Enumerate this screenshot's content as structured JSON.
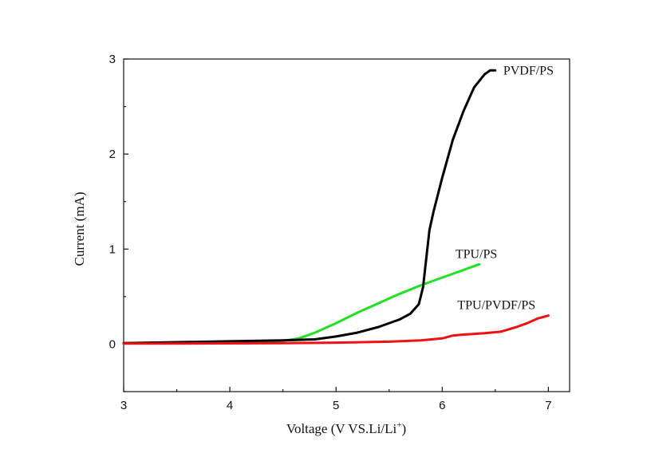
{
  "chart_data": {
    "type": "line",
    "title": "",
    "xlabel_main": "Voltage (V VS.Li/Li",
    "xlabel_sup": "+",
    "xlabel_end": ")",
    "ylabel": "Current (mA)",
    "xlim": [
      3,
      7.2
    ],
    "ylim": [
      -0.5,
      3
    ],
    "xticks": [
      3,
      4,
      5,
      6,
      7
    ],
    "yticks": [
      0,
      1,
      2,
      3
    ],
    "xtick_labels": [
      "3",
      "4",
      "5",
      "6",
      "7"
    ],
    "ytick_labels": [
      "0",
      "1",
      "2",
      "3"
    ],
    "grid": false,
    "legend": "none",
    "series": [
      {
        "name": "PVDF/PS",
        "color": "#000000",
        "x": [
          3.0,
          3.5,
          4.0,
          4.5,
          4.8,
          5.0,
          5.2,
          5.4,
          5.6,
          5.7,
          5.78,
          5.82,
          5.85,
          5.88,
          5.92,
          6.0,
          6.1,
          6.2,
          6.3,
          6.4,
          6.45,
          6.5
        ],
        "y": [
          0.01,
          0.02,
          0.03,
          0.04,
          0.05,
          0.08,
          0.12,
          0.18,
          0.26,
          0.32,
          0.42,
          0.6,
          0.9,
          1.2,
          1.4,
          1.75,
          2.15,
          2.45,
          2.7,
          2.84,
          2.88,
          2.88
        ]
      },
      {
        "name": "TPU/PS",
        "color": "#22e022",
        "x": [
          3.0,
          3.5,
          4.0,
          4.5,
          4.65,
          4.8,
          5.0,
          5.2,
          5.4,
          5.6,
          5.8,
          6.0,
          6.2,
          6.35
        ],
        "y": [
          0.01,
          0.015,
          0.02,
          0.035,
          0.06,
          0.12,
          0.22,
          0.33,
          0.43,
          0.53,
          0.62,
          0.7,
          0.78,
          0.84
        ]
      },
      {
        "name": "TPU/PVDF/PS",
        "color": "#ee1111",
        "x": [
          3.0,
          3.5,
          4.0,
          4.5,
          5.0,
          5.5,
          5.8,
          6.0,
          6.1,
          6.2,
          6.4,
          6.55,
          6.7,
          6.8,
          6.9,
          7.0
        ],
        "y": [
          0.005,
          0.006,
          0.008,
          0.01,
          0.015,
          0.025,
          0.04,
          0.06,
          0.09,
          0.1,
          0.115,
          0.13,
          0.18,
          0.22,
          0.27,
          0.3
        ]
      }
    ]
  }
}
